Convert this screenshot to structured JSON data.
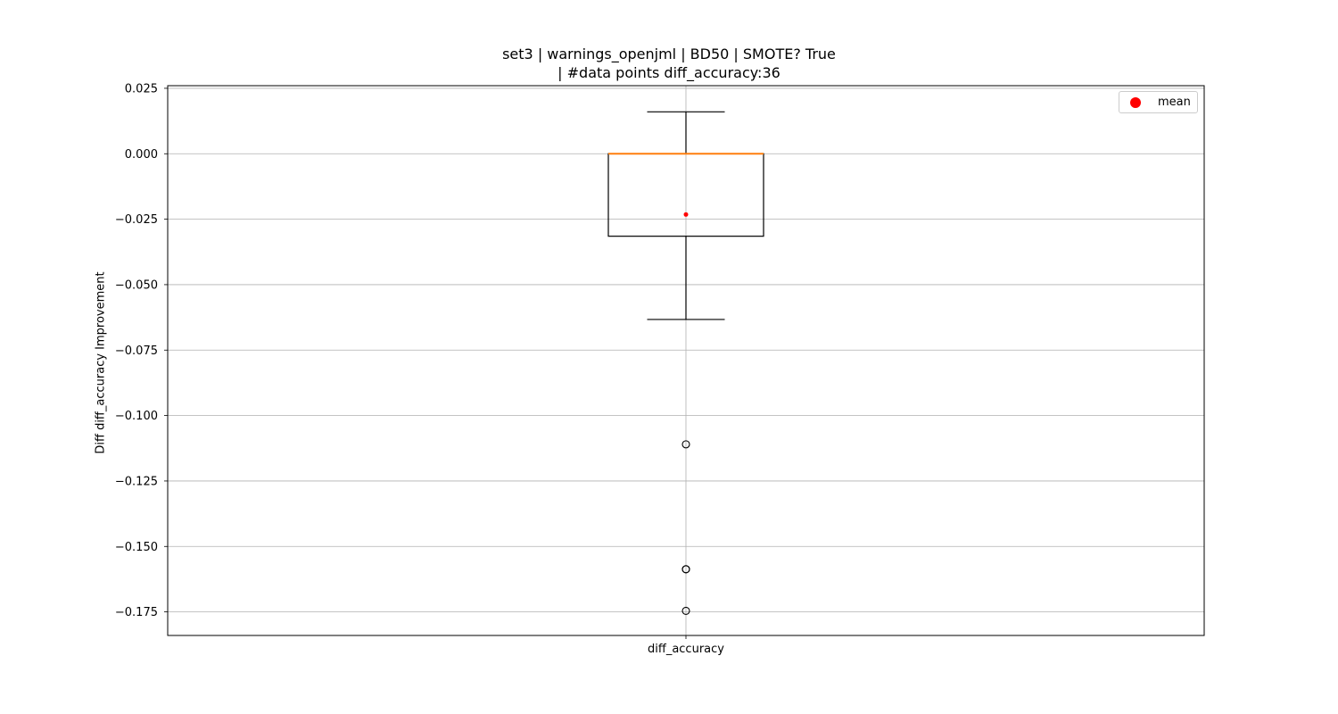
{
  "title_line1": "set3 | warnings_openjml | BD50 | SMOTE? True",
  "title_line2": "| #data points diff_accuracy:36",
  "chart_data": {
    "type": "box",
    "title": "set3 | warnings_openjml | BD50 | SMOTE? True\n| #data points diff_accuracy:36",
    "xlabel": "",
    "ylabel": "Diff diff_accuracy Improvement",
    "ylim": [
      -0.184,
      0.026
    ],
    "yticks": [
      0.025,
      0.0,
      -0.025,
      -0.05,
      -0.075,
      -0.1,
      -0.125,
      -0.15,
      -0.175
    ],
    "ytick_labels": [
      "0.025",
      "0.000",
      "−0.025",
      "−0.050",
      "−0.075",
      "−0.100",
      "−0.125",
      "−0.150",
      "−0.175"
    ],
    "grid": true,
    "categories": [
      "diff_accuracy"
    ],
    "boxes": [
      {
        "name": "diff_accuracy",
        "whisker_high": 0.016,
        "q3": 0.0,
        "median": 0.0,
        "q1": -0.0315,
        "whisker_low": -0.0633,
        "mean": -0.0232,
        "outliers": [
          -0.111,
          -0.1587,
          -0.1587,
          -0.1746
        ]
      }
    ],
    "legend": {
      "position": "top-right",
      "entries": [
        "mean"
      ]
    },
    "colors": {
      "median": "#ff7f0e",
      "mean": "#ff0000",
      "box": "#000000",
      "grid": "#b0b0b0"
    }
  }
}
